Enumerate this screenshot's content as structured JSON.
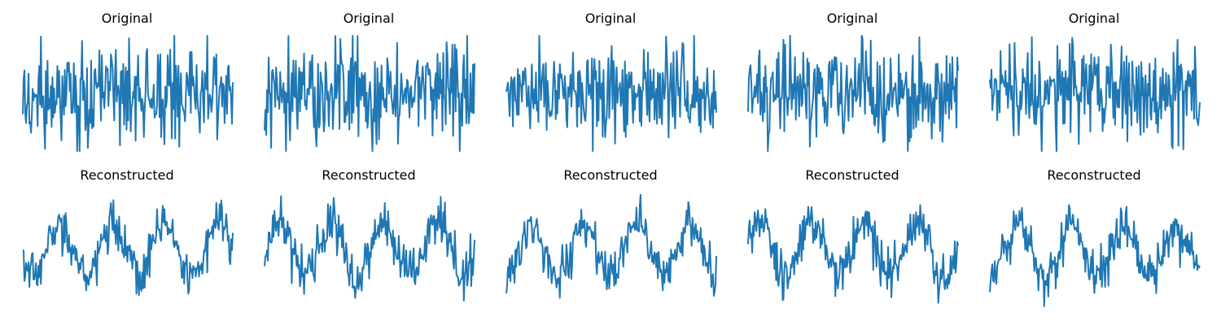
{
  "chart_data": [
    {
      "type": "line",
      "title": "Original",
      "grid": false,
      "axes_visible": false,
      "n_points": 256,
      "ylim": [
        -2.8,
        2.8
      ],
      "line_color": "#1f77b4",
      "signal": {
        "kind": "noise",
        "seed": 11,
        "base_amplitude": 0,
        "cycles": 0,
        "noise_std": 1.15
      }
    },
    {
      "type": "line",
      "title": "Original",
      "grid": false,
      "axes_visible": false,
      "n_points": 256,
      "ylim": [
        -2.8,
        2.8
      ],
      "line_color": "#1f77b4",
      "signal": {
        "kind": "noise",
        "seed": 23,
        "base_amplitude": 0,
        "cycles": 0,
        "noise_std": 1.15
      }
    },
    {
      "type": "line",
      "title": "Original",
      "grid": false,
      "axes_visible": false,
      "n_points": 256,
      "ylim": [
        -2.8,
        2.8
      ],
      "line_color": "#1f77b4",
      "signal": {
        "kind": "noise",
        "seed": 37,
        "base_amplitude": 0,
        "cycles": 0,
        "noise_std": 1.15
      }
    },
    {
      "type": "line",
      "title": "Original",
      "grid": false,
      "axes_visible": false,
      "n_points": 256,
      "ylim": [
        -2.8,
        2.8
      ],
      "line_color": "#1f77b4",
      "signal": {
        "kind": "noise",
        "seed": 41,
        "base_amplitude": 0,
        "cycles": 0,
        "noise_std": 1.15
      }
    },
    {
      "type": "line",
      "title": "Original",
      "grid": false,
      "axes_visible": false,
      "n_points": 256,
      "ylim": [
        -2.8,
        2.8
      ],
      "line_color": "#1f77b4",
      "signal": {
        "kind": "noise",
        "seed": 53,
        "base_amplitude": 0,
        "cycles": 0,
        "noise_std": 1.15
      }
    },
    {
      "type": "line",
      "title": "Reconstructed",
      "grid": false,
      "axes_visible": false,
      "n_points": 256,
      "ylim": [
        -2.2,
        2.2
      ],
      "line_color": "#1f77b4",
      "signal": {
        "kind": "sine_plus_noise",
        "seed": 61,
        "base_amplitude": 1.0,
        "cycles": 4,
        "noise_std": 0.45
      }
    },
    {
      "type": "line",
      "title": "Reconstructed",
      "grid": false,
      "axes_visible": false,
      "n_points": 256,
      "ylim": [
        -2.2,
        2.2
      ],
      "line_color": "#1f77b4",
      "signal": {
        "kind": "sine_plus_noise",
        "seed": 67,
        "base_amplitude": 1.0,
        "cycles": 4,
        "noise_std": 0.45
      }
    },
    {
      "type": "line",
      "title": "Reconstructed",
      "grid": false,
      "axes_visible": false,
      "n_points": 256,
      "ylim": [
        -2.2,
        2.2
      ],
      "line_color": "#1f77b4",
      "signal": {
        "kind": "sine_plus_noise",
        "seed": 71,
        "base_amplitude": 1.0,
        "cycles": 4,
        "noise_std": 0.45
      }
    },
    {
      "type": "line",
      "title": "Reconstructed",
      "grid": false,
      "axes_visible": false,
      "n_points": 256,
      "ylim": [
        -2.2,
        2.2
      ],
      "line_color": "#1f77b4",
      "signal": {
        "kind": "sine_plus_noise",
        "seed": 79,
        "base_amplitude": 1.0,
        "cycles": 4,
        "noise_std": 0.45
      }
    },
    {
      "type": "line",
      "title": "Reconstructed",
      "grid": false,
      "axes_visible": false,
      "n_points": 256,
      "ylim": [
        -2.2,
        2.2
      ],
      "line_color": "#1f77b4",
      "signal": {
        "kind": "sine_plus_noise",
        "seed": 83,
        "base_amplitude": 1.0,
        "cycles": 4,
        "noise_std": 0.45
      }
    }
  ]
}
